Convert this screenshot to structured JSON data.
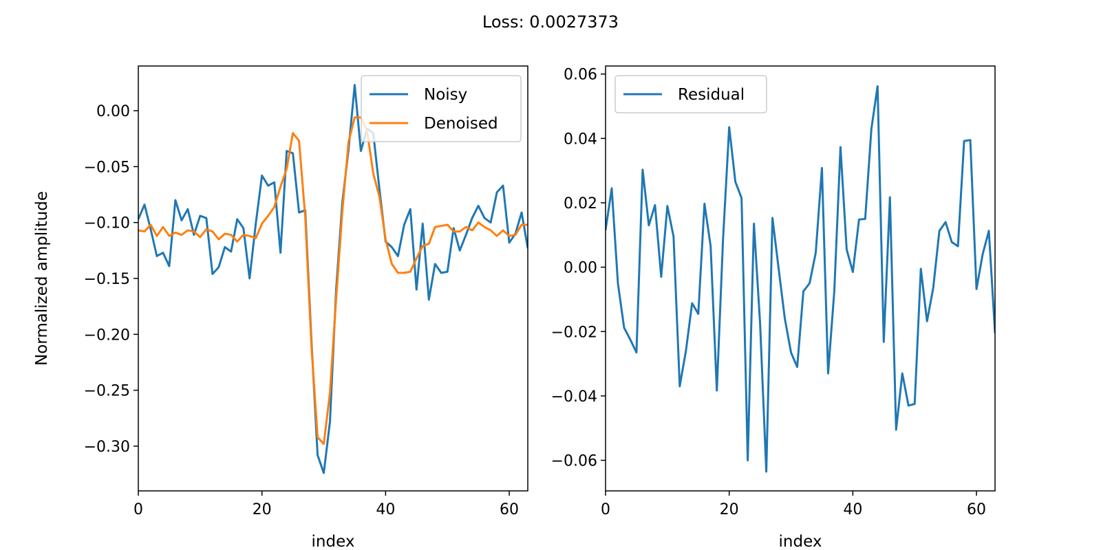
{
  "figure": {
    "suptitle": "Loss: 0.0027373"
  },
  "chart_data": [
    {
      "type": "line",
      "title": "",
      "xlabel": "index",
      "ylabel": "Normalized amplitude",
      "xlim": [
        0,
        63
      ],
      "ylim": [
        -0.34,
        0.04
      ],
      "xticks": [
        0,
        20,
        40,
        60
      ],
      "xtick_labels": [
        "0",
        "20",
        "40",
        "60"
      ],
      "yticks": [
        0.0,
        -0.05,
        -0.1,
        -0.15,
        -0.2,
        -0.25,
        -0.3
      ],
      "ytick_labels": [
        "0.00",
        "−0.05",
        "−0.10",
        "−0.15",
        "−0.20",
        "−0.25",
        "−0.30"
      ],
      "legend_position": "upper right",
      "grid": false,
      "series": [
        {
          "name": "Noisy",
          "color": "#1f77b4",
          "x": [
            0,
            1,
            2,
            3,
            4,
            5,
            6,
            7,
            8,
            9,
            10,
            11,
            12,
            13,
            14,
            15,
            16,
            17,
            18,
            19,
            20,
            21,
            22,
            23,
            24,
            25,
            26,
            27,
            28,
            29,
            30,
            31,
            32,
            33,
            34,
            35,
            36,
            37,
            38,
            39,
            40,
            41,
            42,
            43,
            44,
            45,
            46,
            47,
            48,
            49,
            50,
            51,
            52,
            53,
            54,
            55,
            56,
            57,
            58,
            59,
            60,
            61,
            62,
            63
          ],
          "values": [
            -0.097,
            -0.084,
            -0.106,
            -0.13,
            -0.127,
            -0.139,
            -0.08,
            -0.098,
            -0.088,
            -0.111,
            -0.094,
            -0.096,
            -0.146,
            -0.14,
            -0.122,
            -0.126,
            -0.097,
            -0.105,
            -0.15,
            -0.101,
            -0.058,
            -0.067,
            -0.064,
            -0.127,
            -0.036,
            -0.038,
            -0.091,
            -0.089,
            -0.205,
            -0.308,
            -0.324,
            -0.278,
            -0.16,
            -0.082,
            -0.035,
            0.023,
            -0.036,
            -0.016,
            -0.02,
            -0.07,
            -0.117,
            -0.122,
            -0.13,
            -0.102,
            -0.088,
            -0.16,
            -0.101,
            -0.169,
            -0.137,
            -0.145,
            -0.144,
            -0.105,
            -0.125,
            -0.111,
            -0.096,
            -0.085,
            -0.096,
            -0.1,
            -0.073,
            -0.067,
            -0.118,
            -0.11,
            -0.091,
            -0.123
          ]
        },
        {
          "name": "Denoised",
          "color": "#ff7f0e",
          "x": [
            0,
            1,
            2,
            3,
            4,
            5,
            6,
            7,
            8,
            9,
            10,
            11,
            12,
            13,
            14,
            15,
            16,
            17,
            18,
            19,
            20,
            21,
            22,
            23,
            24,
            25,
            26,
            27,
            28,
            29,
            30,
            31,
            32,
            33,
            34,
            35,
            36,
            37,
            38,
            39,
            40,
            41,
            42,
            43,
            44,
            45,
            46,
            47,
            48,
            49,
            50,
            51,
            52,
            53,
            54,
            55,
            56,
            57,
            58,
            59,
            60,
            61,
            62,
            63
          ],
          "values": [
            -0.107,
            -0.108,
            -0.102,
            -0.112,
            -0.104,
            -0.112,
            -0.109,
            -0.111,
            -0.107,
            -0.108,
            -0.113,
            -0.106,
            -0.108,
            -0.115,
            -0.11,
            -0.111,
            -0.117,
            -0.111,
            -0.112,
            -0.114,
            -0.101,
            -0.094,
            -0.086,
            -0.068,
            -0.052,
            -0.02,
            -0.027,
            -0.095,
            -0.21,
            -0.292,
            -0.298,
            -0.252,
            -0.168,
            -0.09,
            -0.028,
            -0.006,
            -0.006,
            -0.018,
            -0.056,
            -0.077,
            -0.115,
            -0.137,
            -0.145,
            -0.145,
            -0.144,
            -0.132,
            -0.121,
            -0.119,
            -0.104,
            -0.103,
            -0.102,
            -0.108,
            -0.108,
            -0.104,
            -0.107,
            -0.1,
            -0.104,
            -0.107,
            -0.112,
            -0.107,
            -0.112,
            -0.111,
            -0.102,
            -0.102
          ]
        }
      ]
    },
    {
      "type": "line",
      "title": "",
      "xlabel": "index",
      "ylabel": "",
      "xlim": [
        0,
        63
      ],
      "ylim": [
        -0.0695,
        0.0625
      ],
      "xticks": [
        0,
        20,
        40,
        60
      ],
      "xtick_labels": [
        "0",
        "20",
        "40",
        "60"
      ],
      "yticks": [
        0.06,
        0.04,
        0.02,
        0.0,
        -0.02,
        -0.04,
        -0.06
      ],
      "ytick_labels": [
        "0.06",
        "0.04",
        "0.02",
        "0.00",
        "−0.02",
        "−0.04",
        "−0.06"
      ],
      "legend_position": "upper left",
      "grid": false,
      "series": [
        {
          "name": "Residual",
          "color": "#1f77b4",
          "x": [
            0,
            1,
            2,
            3,
            4,
            5,
            6,
            7,
            8,
            9,
            10,
            11,
            12,
            13,
            14,
            15,
            16,
            17,
            18,
            19,
            20,
            21,
            22,
            23,
            24,
            25,
            26,
            27,
            28,
            29,
            30,
            31,
            32,
            33,
            34,
            35,
            36,
            37,
            38,
            39,
            40,
            41,
            42,
            43,
            44,
            45,
            46,
            47,
            48,
            49,
            50,
            51,
            52,
            53,
            54,
            55,
            56,
            57,
            58,
            59,
            60,
            61,
            62,
            63
          ],
          "values": [
            0.0115,
            0.0245,
            -0.005,
            -0.0188,
            -0.0225,
            -0.0265,
            0.0303,
            0.013,
            0.0193,
            -0.003,
            0.019,
            0.0095,
            -0.037,
            -0.026,
            -0.0112,
            -0.0145,
            0.0197,
            0.0065,
            -0.0383,
            0.0085,
            0.0435,
            0.0265,
            0.0215,
            -0.06,
            0.0135,
            -0.0175,
            -0.0635,
            0.0153,
            -0.0005,
            -0.016,
            -0.0265,
            -0.031,
            -0.0075,
            -0.005,
            0.0045,
            0.0308,
            -0.033,
            -0.0075,
            0.0373,
            0.0055,
            -0.0015,
            0.0148,
            0.015,
            0.043,
            0.0562,
            -0.0232,
            0.0217,
            -0.0505,
            -0.033,
            -0.043,
            -0.0425,
            -0.0005,
            -0.0168,
            -0.0065,
            0.0113,
            0.014,
            0.0078,
            0.0065,
            0.0392,
            0.0395,
            -0.0068,
            0.004,
            0.0113,
            -0.0205
          ]
        }
      ]
    }
  ]
}
